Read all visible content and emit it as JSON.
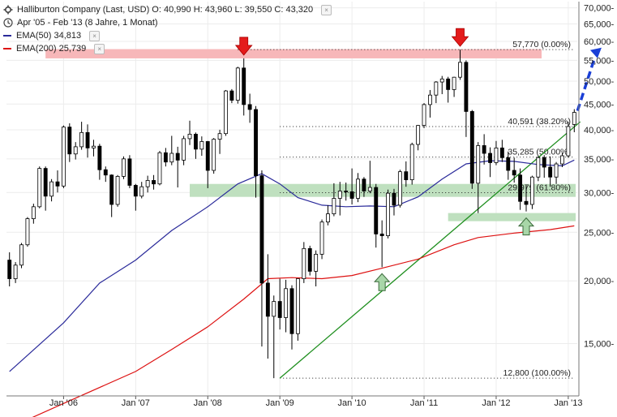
{
  "legend": {
    "title": "Halliburton Company (Last, USD)",
    "ohlc": {
      "open": "O: 40,990",
      "high": "H: 43,960",
      "low": "L: 39,550",
      "close": "C: 43,320"
    },
    "period": "Apr '05 - Feb '13 (8 Jahre, 1 Monat)",
    "ema50": {
      "label": "EMA(50)",
      "value": "34,813",
      "color": "#2a2a9a"
    },
    "ema200": {
      "label": "EMA(200)",
      "value": "25,739",
      "color": "#dd1111"
    }
  },
  "chart_data": {
    "type": "candlestick",
    "y_scale": "log",
    "ylim": [
      11800,
      72000
    ],
    "xlim": [
      "2005-04",
      "2013-03"
    ],
    "y_ticks": [
      15000,
      20000,
      25000,
      30000,
      35000,
      40000,
      45000,
      50000,
      55000,
      60000,
      65000,
      70000
    ],
    "y_tick_labels": [
      "15,000-",
      "20,000-",
      "25,000-",
      "30,000-",
      "35,000-",
      "40,000-",
      "45,000-",
      "50,000-",
      "55,000-",
      "60,000-",
      "65,000-",
      "70,000-"
    ],
    "x_ticks": [
      "2006-01",
      "2007-01",
      "2008-01",
      "2009-01",
      "2010-01",
      "2011-01",
      "2012-01",
      "2013-01"
    ],
    "x_tick_labels": [
      "Jan '06",
      "Jan '07",
      "Jan '08",
      "Jan '09",
      "Jan '10",
      "Jan '11",
      "Jan '12",
      "Jan '13"
    ],
    "grid": true,
    "colors": {
      "up": "#ffffff",
      "down": "#000000",
      "zone_red": "#f7b7b9",
      "zone_green": "#bfe0bf",
      "trend": "#1f8f1f",
      "arrow_blue": "#1a3fd6",
      "arrow_red": "#e41b1b",
      "arrow_green": "#a8d6a8"
    },
    "candles": [
      [
        "2005-04",
        22000,
        22800,
        19500,
        20200
      ],
      [
        "2005-05",
        20200,
        21800,
        19800,
        21500
      ],
      [
        "2005-06",
        21500,
        23800,
        21200,
        23600
      ],
      [
        "2005-07",
        23600,
        26800,
        23400,
        26600
      ],
      [
        "2005-08",
        26600,
        28500,
        26000,
        28100
      ],
      [
        "2005-09",
        28100,
        33800,
        27900,
        33500
      ],
      [
        "2005-10",
        33500,
        33800,
        27600,
        29500
      ],
      [
        "2005-11",
        29500,
        31900,
        28800,
        31500
      ],
      [
        "2005-12",
        31500,
        33200,
        30000,
        30900
      ],
      [
        "2006-01",
        30900,
        40800,
        30600,
        40500
      ],
      [
        "2006-02",
        40500,
        41200,
        34500,
        35800
      ],
      [
        "2006-03",
        35800,
        37800,
        34900,
        37000
      ],
      [
        "2006-04",
        37000,
        41500,
        36500,
        39500
      ],
      [
        "2006-05",
        39500,
        41000,
        35200,
        36800
      ],
      [
        "2006-06",
        36800,
        38200,
        35400,
        37100
      ],
      [
        "2006-07",
        37100,
        37500,
        31800,
        33300
      ],
      [
        "2006-08",
        33300,
        33800,
        31500,
        32500
      ],
      [
        "2006-09",
        32500,
        32600,
        26800,
        28400
      ],
      [
        "2006-10",
        28400,
        32500,
        28100,
        32300
      ],
      [
        "2006-11",
        32300,
        35400,
        31900,
        35000
      ],
      [
        "2006-12",
        35000,
        35600,
        30600,
        31000
      ],
      [
        "2007-01",
        31000,
        31200,
        27600,
        29500
      ],
      [
        "2007-02",
        29500,
        31500,
        29200,
        30800
      ],
      [
        "2007-03",
        30800,
        32400,
        30000,
        31700
      ],
      [
        "2007-04",
        31700,
        32500,
        30400,
        31200
      ],
      [
        "2007-05",
        31200,
        36300,
        31000,
        36000
      ],
      [
        "2007-06",
        36000,
        36800,
        33800,
        34500
      ],
      [
        "2007-07",
        34500,
        38900,
        34000,
        35900
      ],
      [
        "2007-08",
        35900,
        37000,
        30700,
        34800
      ],
      [
        "2007-09",
        34800,
        38900,
        34000,
        38400
      ],
      [
        "2007-10",
        38400,
        41700,
        37300,
        39200
      ],
      [
        "2007-11",
        39200,
        39500,
        35000,
        36600
      ],
      [
        "2007-12",
        36600,
        38800,
        35500,
        37900
      ],
      [
        "2008-01",
        37900,
        38000,
        30600,
        33200
      ],
      [
        "2008-02",
        33200,
        38500,
        32700,
        38300
      ],
      [
        "2008-03",
        38300,
        40000,
        35800,
        39300
      ],
      [
        "2008-04",
        39300,
        48000,
        38900,
        47800
      ],
      [
        "2008-05",
        47800,
        48200,
        45200,
        45800
      ],
      [
        "2008-06",
        45800,
        53400,
        45100,
        53100
      ],
      [
        "2008-07",
        53100,
        55500,
        42700,
        44900
      ],
      [
        "2008-08",
        44900,
        47200,
        41300,
        43900
      ],
      [
        "2008-09",
        43900,
        44600,
        29300,
        32400
      ],
      [
        "2008-10",
        32400,
        33200,
        14800,
        19800
      ],
      [
        "2008-11",
        19800,
        22600,
        14000,
        17000
      ],
      [
        "2008-12",
        17000,
        18700,
        12800,
        18200
      ],
      [
        "2009-01",
        18200,
        20200,
        16000,
        16900
      ],
      [
        "2009-02",
        16900,
        20100,
        15800,
        19300
      ],
      [
        "2009-03",
        19300,
        19600,
        14600,
        15700
      ],
      [
        "2009-04",
        15700,
        20200,
        15200,
        20200
      ],
      [
        "2009-05",
        20200,
        23900,
        19800,
        23200
      ],
      [
        "2009-06",
        23200,
        23500,
        20500,
        20900
      ],
      [
        "2009-07",
        20900,
        23000,
        19500,
        22600
      ],
      [
        "2009-08",
        22600,
        26500,
        22100,
        26200
      ],
      [
        "2009-09",
        26200,
        28300,
        25800,
        27200
      ],
      [
        "2009-10",
        27200,
        31300,
        26900,
        29200
      ],
      [
        "2009-11",
        29200,
        31500,
        27000,
        30200
      ],
      [
        "2009-12",
        30200,
        31400,
        28900,
        30100
      ],
      [
        "2010-01",
        30100,
        33500,
        28400,
        29200
      ],
      [
        "2010-02",
        29200,
        32800,
        28700,
        31900
      ],
      [
        "2010-03",
        31900,
        32200,
        29400,
        30200
      ],
      [
        "2010-04",
        30200,
        34700,
        29900,
        30700
      ],
      [
        "2010-05",
        30700,
        31200,
        23300,
        24800
      ],
      [
        "2010-06",
        24800,
        26400,
        21300,
        24600
      ],
      [
        "2010-07",
        24600,
        30400,
        24300,
        29900
      ],
      [
        "2010-08",
        29900,
        30500,
        27000,
        28300
      ],
      [
        "2010-09",
        28300,
        33300,
        28000,
        33000
      ],
      [
        "2010-10",
        33000,
        34600,
        30800,
        31800
      ],
      [
        "2010-11",
        31800,
        37700,
        31100,
        37400
      ],
      [
        "2010-12",
        37400,
        40900,
        36400,
        40800
      ],
      [
        "2011-01",
        40800,
        45200,
        40300,
        44900
      ],
      [
        "2011-02",
        44900,
        48000,
        42300,
        46900
      ],
      [
        "2011-03",
        46900,
        50000,
        45200,
        49800
      ],
      [
        "2011-04",
        49800,
        51200,
        47100,
        50500
      ],
      [
        "2011-05",
        50500,
        51000,
        45300,
        48100
      ],
      [
        "2011-06",
        48100,
        51000,
        46500,
        50900
      ],
      [
        "2011-07",
        50900,
        57770,
        50300,
        54500
      ],
      [
        "2011-08",
        54500,
        55000,
        38700,
        43500
      ],
      [
        "2011-09",
        43500,
        43800,
        30500,
        31300
      ],
      [
        "2011-10",
        31300,
        37800,
        27300,
        37200
      ],
      [
        "2011-11",
        37200,
        39200,
        34100,
        35900
      ],
      [
        "2011-12",
        35900,
        36900,
        32200,
        34400
      ],
      [
        "2012-01",
        34400,
        38000,
        34000,
        36800
      ],
      [
        "2012-02",
        36800,
        38200,
        34500,
        35200
      ],
      [
        "2012-03",
        35200,
        36200,
        31800,
        33200
      ],
      [
        "2012-04",
        33200,
        35200,
        31400,
        32500
      ],
      [
        "2012-05",
        32500,
        33500,
        27700,
        28800
      ],
      [
        "2012-06",
        28800,
        31000,
        27500,
        28400
      ],
      [
        "2012-07",
        28400,
        32400,
        27800,
        32200
      ],
      [
        "2012-08",
        32200,
        35500,
        31600,
        35200
      ],
      [
        "2012-09",
        35200,
        35600,
        32100,
        33700
      ],
      [
        "2012-10",
        33700,
        35400,
        30800,
        32200
      ],
      [
        "2012-11",
        32200,
        34500,
        31200,
        34200
      ],
      [
        "2012-12",
        34200,
        36000,
        33700,
        35500
      ],
      [
        "2013-01",
        35500,
        41500,
        35200,
        40600
      ],
      [
        "2013-02",
        40990,
        43960,
        39550,
        43320
      ]
    ],
    "ema50": [
      [
        "2005-04",
        13200
      ],
      [
        "2006-01",
        16500
      ],
      [
        "2006-07",
        19800
      ],
      [
        "2007-01",
        22000
      ],
      [
        "2007-07",
        25200
      ],
      [
        "2008-01",
        28100
      ],
      [
        "2008-06",
        31200
      ],
      [
        "2008-10",
        32700
      ],
      [
        "2009-01",
        31200
      ],
      [
        "2009-04",
        29300
      ],
      [
        "2009-08",
        28300
      ],
      [
        "2009-12",
        28100
      ],
      [
        "2010-04",
        28200
      ],
      [
        "2010-08",
        28100
      ],
      [
        "2010-12",
        29400
      ],
      [
        "2011-04",
        31900
      ],
      [
        "2011-08",
        34200
      ],
      [
        "2011-12",
        34700
      ],
      [
        "2012-04",
        34600
      ],
      [
        "2012-08",
        34100
      ],
      [
        "2012-12",
        33900
      ],
      [
        "2013-02",
        34813
      ]
    ],
    "ema200": [
      [
        "2005-04",
        10200
      ],
      [
        "2006-01",
        11400
      ],
      [
        "2007-01",
        13200
      ],
      [
        "2007-07",
        14600
      ],
      [
        "2008-01",
        16200
      ],
      [
        "2008-07",
        18400
      ],
      [
        "2008-11",
        20200
      ],
      [
        "2009-03",
        20300
      ],
      [
        "2009-08",
        20200
      ],
      [
        "2010-01",
        20500
      ],
      [
        "2010-06",
        21200
      ],
      [
        "2010-12",
        22100
      ],
      [
        "2011-06",
        23600
      ],
      [
        "2011-10",
        24400
      ],
      [
        "2012-04",
        24900
      ],
      [
        "2012-10",
        25300
      ],
      [
        "2013-02",
        25739
      ]
    ],
    "resistance_zones": [
      {
        "from": "2005-10",
        "to": "2013-03",
        "low": 55500,
        "high": 57900,
        "color": "red"
      }
    ],
    "support_zones": [
      {
        "from": "2007-10",
        "to": "2013-03",
        "low": 29400,
        "high": 31200,
        "color": "green"
      },
      {
        "from": "2011-05",
        "to": "2013-03",
        "low": 26300,
        "high": 27300,
        "color": "green"
      }
    ],
    "fibonacci": [
      {
        "value": 57770,
        "label": "57,770 (0.00%)",
        "from": "2008-06"
      },
      {
        "value": 40591,
        "label": "40,591 (38.20%)",
        "from": "2009-01"
      },
      {
        "value": 35285,
        "label": "35,285 (50.00%)",
        "from": "2009-01"
      },
      {
        "value": 29979,
        "label": "29,979 (61.80%)",
        "from": "2009-01"
      },
      {
        "value": 12800,
        "label": "12,800 (100.00%)",
        "from": "2009-01"
      }
    ],
    "trendline": [
      [
        "2009-01",
        12800
      ],
      [
        "2013-03",
        41500
      ]
    ],
    "markers": [
      {
        "type": "arrow-down",
        "date": "2008-07",
        "value": 55500,
        "color": "red"
      },
      {
        "type": "arrow-down",
        "date": "2011-07",
        "value": 57770,
        "color": "red"
      },
      {
        "type": "arrow-up",
        "date": "2010-06",
        "value": 21300,
        "color": "green"
      },
      {
        "type": "arrow-up",
        "date": "2012-06",
        "value": 27500,
        "color": "green"
      }
    ],
    "projection": [
      [
        "2013-02",
        43960
      ],
      [
        "2013-06",
        57000
      ]
    ]
  }
}
